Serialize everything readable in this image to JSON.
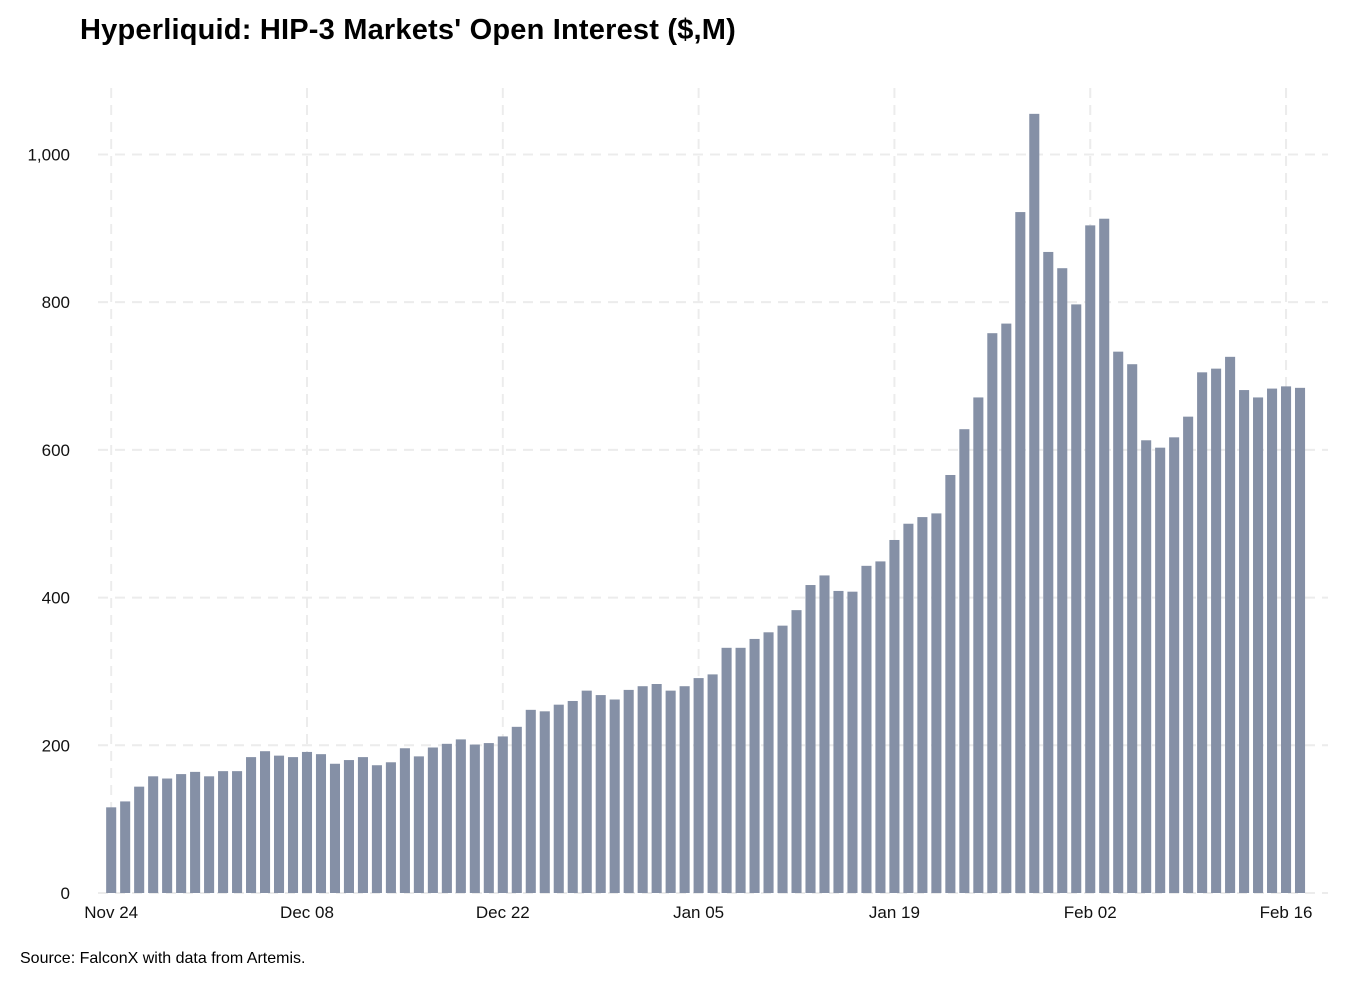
{
  "title": "Hyperliquid: HIP-3 Markets' Open Interest ($,M)",
  "source": "Source: FalconX with data from Artemis.",
  "chart_data": {
    "type": "bar",
    "title": "Hyperliquid: HIP-3 Markets' Open Interest ($,M)",
    "xlabel": "",
    "ylabel": "",
    "ylim": [
      0,
      1090
    ],
    "xlim_days": [
      -0.8,
      87
    ],
    "grid": true,
    "bar_color": "#8590a6",
    "grid_color": "#ececec",
    "yticks": [
      {
        "value": 0,
        "label": "0"
      },
      {
        "value": 200,
        "label": "200"
      },
      {
        "value": 400,
        "label": "400"
      },
      {
        "value": 600,
        "label": "600"
      },
      {
        "value": 800,
        "label": "800"
      },
      {
        "value": 1000,
        "label": "1,000"
      }
    ],
    "xticks": [
      {
        "day": 0,
        "label": "Nov 24"
      },
      {
        "day": 14,
        "label": "Dec 08"
      },
      {
        "day": 28,
        "label": "Dec 22"
      },
      {
        "day": 42,
        "label": "Jan 05"
      },
      {
        "day": 56,
        "label": "Jan 19"
      },
      {
        "day": 70,
        "label": "Feb 02"
      },
      {
        "day": 84,
        "label": "Feb 16"
      }
    ],
    "start_date": "Nov 24",
    "values": [
      116,
      124,
      144,
      158,
      155,
      161,
      164,
      158,
      165,
      165,
      184,
      192,
      186,
      184,
      191,
      188,
      175,
      180,
      184,
      173,
      177,
      196,
      185,
      197,
      202,
      208,
      201,
      203,
      212,
      225,
      248,
      246,
      255,
      260,
      274,
      268,
      262,
      275,
      280,
      283,
      274,
      280,
      291,
      296,
      332,
      332,
      344,
      353,
      362,
      383,
      417,
      430,
      409,
      408,
      443,
      449,
      478,
      500,
      509,
      514,
      566,
      628,
      671,
      758,
      771,
      922,
      1055,
      868,
      846,
      797,
      904,
      913,
      733,
      716,
      613,
      603,
      617,
      645,
      705,
      710,
      726,
      681,
      671,
      683,
      686,
      684
    ]
  }
}
